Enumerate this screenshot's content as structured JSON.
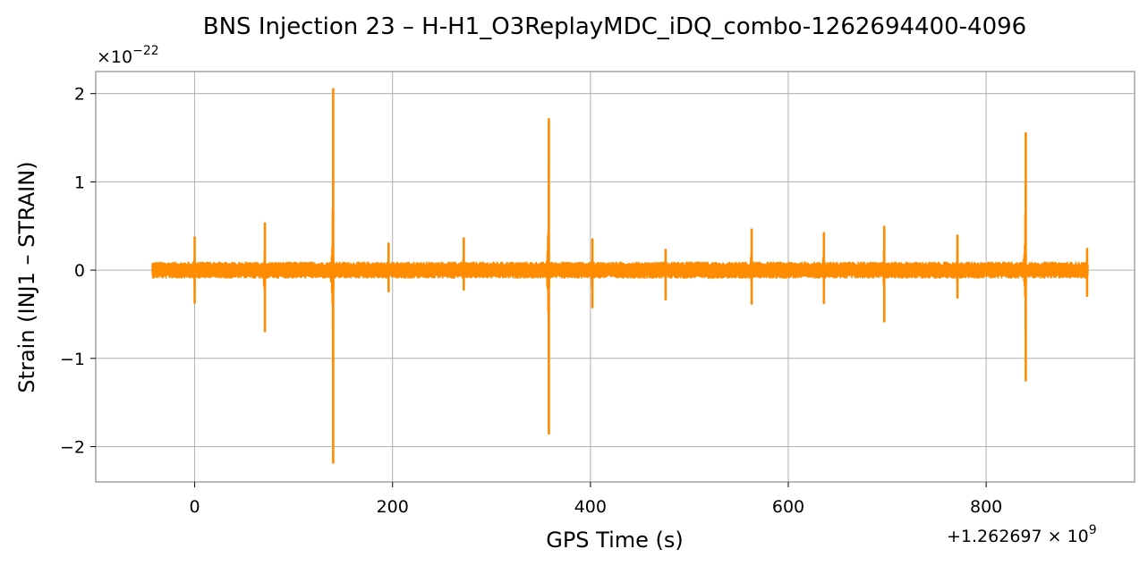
{
  "chart_data": {
    "type": "line",
    "title": "BNS Injection 23 – H-H1_O3ReplayMDC_iDQ_combo-1262694400-4096",
    "xlabel": "GPS Time (s)",
    "ylabel": "Strain (INJ1 – STRAIN)",
    "x_offset_label": "+1.262697 × 10",
    "x_offset_exponent": "9",
    "y_scale_label": "×10",
    "y_scale_exponent": "−22",
    "xlim": [
      -100,
      950
    ],
    "ylim": [
      -2.4,
      2.25
    ],
    "xticks": [
      0,
      200,
      400,
      600,
      800
    ],
    "xtick_labels": [
      "0",
      "200",
      "400",
      "600",
      "800"
    ],
    "yticks": [
      -2,
      -1,
      0,
      1,
      2
    ],
    "ytick_labels": [
      "−2",
      "−1",
      "0",
      "1",
      "2"
    ],
    "grid": true,
    "legend": "none",
    "color": "#ff8c00",
    "series": [
      {
        "x_range": [
          -43,
          903
        ],
        "baseline_amplitude": 0.09,
        "glitches": [
          {
            "t": 0,
            "max": 0.37,
            "min": -0.37
          },
          {
            "t": 71,
            "max": 0.53,
            "min": -0.69
          },
          {
            "t": 140,
            "max": 2.05,
            "min": -2.18
          },
          {
            "t": 196,
            "max": 0.3,
            "min": -0.24
          },
          {
            "t": 272,
            "max": 0.36,
            "min": -0.22
          },
          {
            "t": 358,
            "max": 1.71,
            "min": -1.85
          },
          {
            "t": 402,
            "max": 0.35,
            "min": -0.42
          },
          {
            "t": 476,
            "max": 0.23,
            "min": -0.33
          },
          {
            "t": 563,
            "max": 0.46,
            "min": -0.38
          },
          {
            "t": 636,
            "max": 0.42,
            "min": -0.37
          },
          {
            "t": 697,
            "max": 0.49,
            "min": -0.58
          },
          {
            "t": 771,
            "max": 0.39,
            "min": -0.31
          },
          {
            "t": 840,
            "max": 1.55,
            "min": -1.25
          },
          {
            "t": 902,
            "max": 0.24,
            "min": -0.29
          }
        ]
      }
    ]
  }
}
